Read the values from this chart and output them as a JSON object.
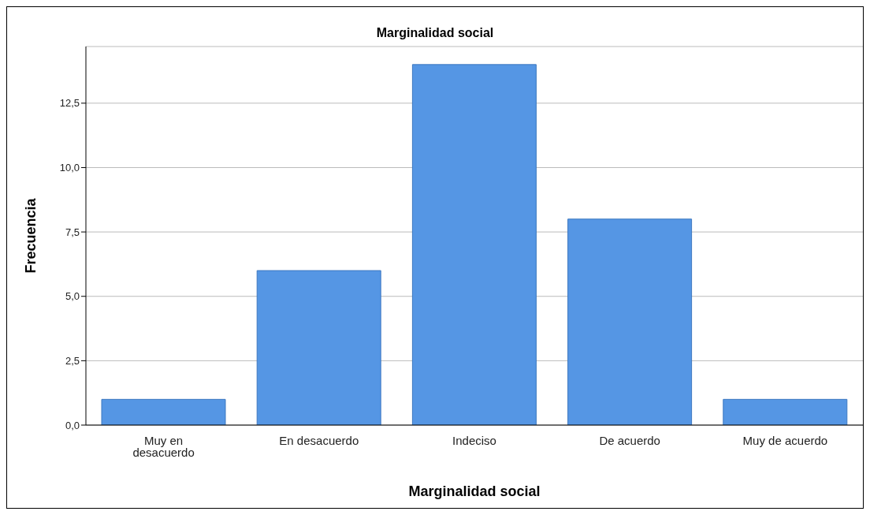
{
  "chart_data": {
    "type": "bar",
    "title": "Marginalidad social",
    "xlabel": "Marginalidad social",
    "ylabel": "Frecuencia",
    "categories": [
      "Muy en desacuerdo",
      "En desacuerdo",
      "Indeciso",
      "De acuerdo",
      "Muy de acuerdo"
    ],
    "values": [
      1,
      6,
      14,
      8,
      1
    ],
    "color": "#5596e4",
    "ylim": [
      0,
      14.7
    ],
    "yticks": [
      {
        "value": 0,
        "label": "0,0"
      },
      {
        "value": 2.5,
        "label": "2,5"
      },
      {
        "value": 5,
        "label": "5,0"
      },
      {
        "value": 7.5,
        "label": "7,5"
      },
      {
        "value": 10,
        "label": "10,0"
      },
      {
        "value": 12.5,
        "label": "12,5"
      }
    ],
    "grid": "y"
  }
}
